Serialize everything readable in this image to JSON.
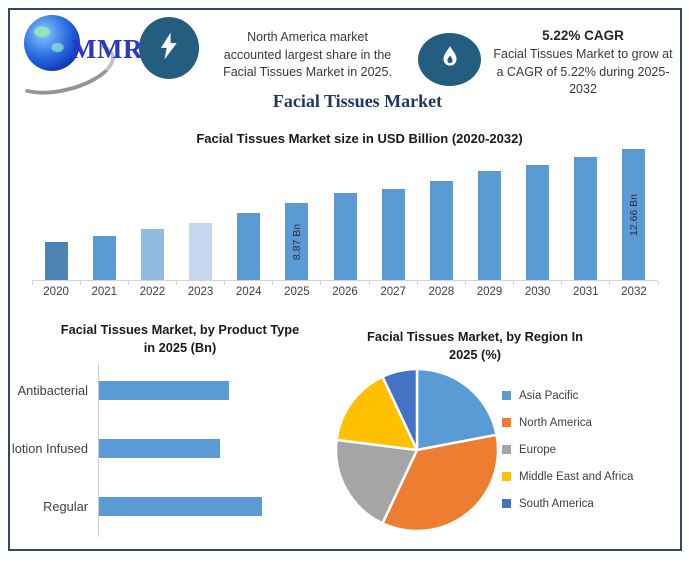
{
  "brand": {
    "logo_text": "MMR"
  },
  "header": {
    "left_note": "North America market\naccounted largest share in the\nFacial Tissues Market in 2025.",
    "cagr_title": "5.22% CAGR",
    "cagr_note": "Facial Tissues Market to grow at\na CAGR of 5.22% during 2025-\n2032",
    "badge_color": "#235e80"
  },
  "page_title": "Facial Tissues Market",
  "chart_data": [
    {
      "type": "bar",
      "title": "Facial Tissues Market size in USD Billion (2020-2032)",
      "ylabel": "USD Billion",
      "categories": [
        "2020",
        "2021",
        "2022",
        "2023",
        "2024",
        "2025",
        "2026",
        "2027",
        "2028",
        "2029",
        "2030",
        "2031",
        "2032"
      ],
      "values": [
        6.15,
        6.6,
        7.1,
        7.5,
        8.2,
        8.87,
        9.6,
        9.9,
        10.45,
        11.1,
        11.55,
        12.1,
        12.66
      ],
      "data_labels": [
        "",
        "",
        "",
        "",
        "",
        "8.87 Bn",
        "",
        "",
        "",
        "",
        "",
        "",
        "12.66 Bn"
      ],
      "bar_color_default": "#5b9bd5",
      "bar_color_overrides": {
        "2020": "#4d84b4",
        "2022": "#93bae0",
        "2023": "#c5d7ee"
      },
      "ylim": [
        3.5,
        13.3
      ],
      "grid": false
    },
    {
      "type": "bar",
      "orientation": "horizontal",
      "title": "Facial Tissues Market, by Product Type\nin 2025 (Bn)",
      "categories": [
        "Antibacterial",
        "lotion Infused",
        "Regular"
      ],
      "values": [
        2.8,
        2.6,
        3.5
      ],
      "xlim": [
        0,
        3.5
      ],
      "bar_color": "#5b9bd5"
    },
    {
      "type": "pie",
      "title": "Facial Tissues Market, by Region In\n2025 (%)",
      "slices": [
        {
          "label": "Asia Pacific",
          "value": 22,
          "color": "#5b9bd5"
        },
        {
          "label": "North America",
          "value": 35,
          "color": "#ed7d31"
        },
        {
          "label": "Europe",
          "value": 20,
          "color": "#a5a5a5"
        },
        {
          "label": "Middle East and Africa",
          "value": 16,
          "color": "#ffc000"
        },
        {
          "label": "South America",
          "value": 7,
          "color": "#4472c4"
        }
      ],
      "start_angle_deg": 0,
      "legend_position": "right"
    }
  ]
}
